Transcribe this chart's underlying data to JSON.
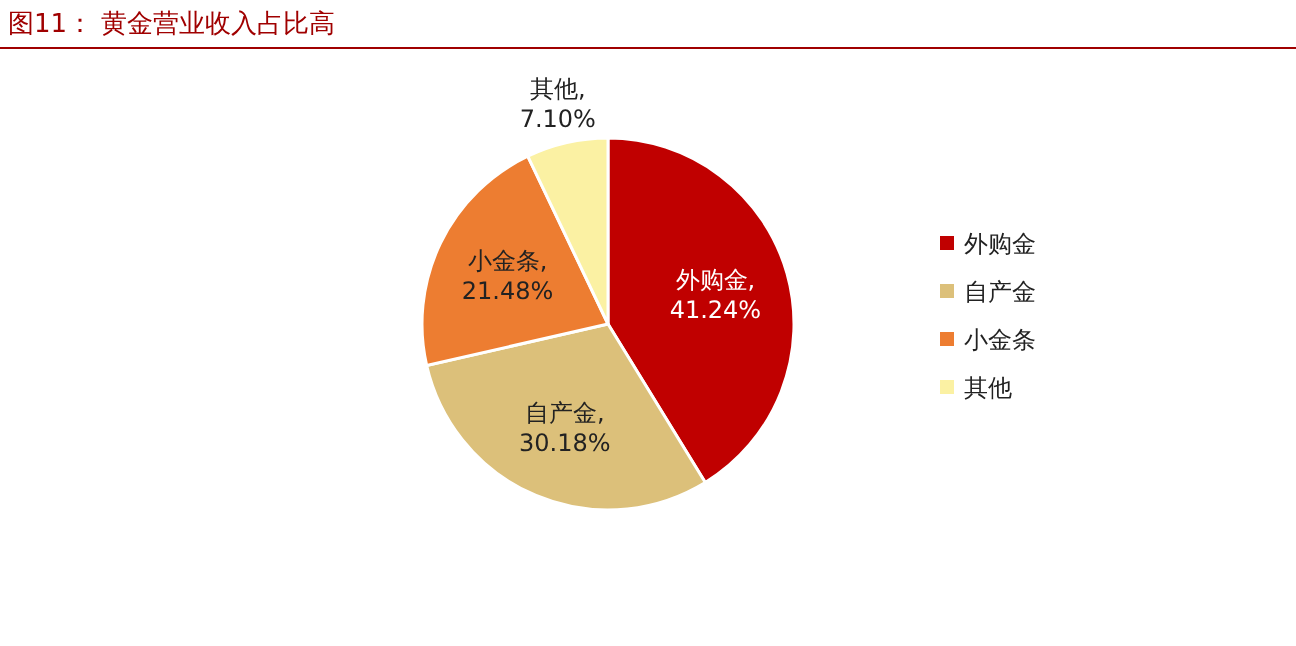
{
  "chart_data": {
    "type": "pie",
    "title": "图11：  黄金营业收入占比高",
    "categories": [
      "外购金",
      "自产金",
      "小金条",
      "其他"
    ],
    "values": [
      41.24,
      30.18,
      21.48,
      7.1
    ],
    "colors": [
      "#c00000",
      "#dcc07a",
      "#ed7d31",
      "#fbf1a3"
    ],
    "value_labels": [
      "外购金,41.24%",
      "自产金,30.18%",
      "小金条,21.48%",
      "其他,7.10%"
    ],
    "legend": "right"
  }
}
